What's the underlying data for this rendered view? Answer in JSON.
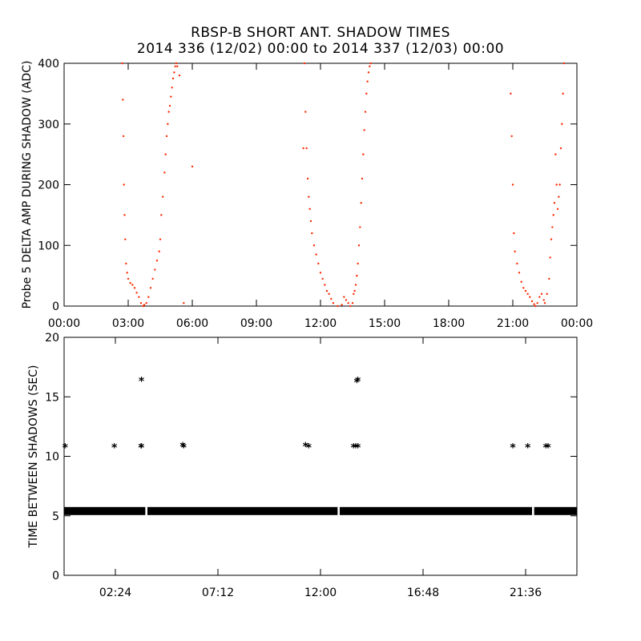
{
  "titles": {
    "line1": "RBSP-B SHORT ANT. SHADOW TIMES",
    "line2": "2014 336 (12/02) 00:00 to 2014 337 (12/03) 00:00"
  },
  "colors": {
    "shadow_points": "#ff2a00",
    "between_points": "#000000",
    "axes": "#000000"
  },
  "chart_data": [
    {
      "type": "scatter",
      "ylabel": "Probe 5 DELTA AMP DURING SHADOW (ADC)",
      "xlim": [
        0,
        24
      ],
      "ylim": [
        0,
        400
      ],
      "x_unit": "hours",
      "xticks": [
        0,
        3,
        6,
        9,
        12,
        15,
        18,
        21,
        24
      ],
      "xtick_labels": [
        "00:00",
        "03:00",
        "06:00",
        "09:00",
        "12:00",
        "15:00",
        "18:00",
        "21:00",
        "00:00"
      ],
      "yticks": [
        0,
        100,
        200,
        300,
        400
      ],
      "ytick_labels": [
        "0",
        "100",
        "200",
        "300",
        "400"
      ],
      "marker": "dot",
      "series": [
        {
          "x": [
            2.72,
            2.75,
            2.78,
            2.8,
            2.83,
            2.86,
            2.9,
            2.95,
            3.0,
            3.1,
            3.2,
            3.3,
            3.4,
            3.5,
            3.6,
            3.7,
            3.75,
            3.85,
            3.95,
            4.05,
            4.15,
            4.25,
            4.35,
            4.45,
            4.5,
            4.55,
            4.62,
            4.7,
            4.75,
            4.8,
            4.85,
            4.9,
            4.95,
            5.0,
            5.05,
            5.1,
            5.15,
            5.2,
            5.25,
            5.3,
            5.4,
            5.6,
            6.0
          ],
          "y": [
            400,
            340,
            280,
            200,
            150,
            110,
            70,
            55,
            45,
            38,
            35,
            30,
            22,
            15,
            5,
            0,
            2,
            5,
            15,
            30,
            45,
            60,
            75,
            90,
            110,
            150,
            180,
            220,
            250,
            280,
            300,
            320,
            330,
            345,
            360,
            375,
            385,
            395,
            400,
            395,
            380,
            5,
            230
          ]
        },
        {
          "x": [
            11.2,
            11.25,
            11.3,
            11.35,
            11.4,
            11.45,
            11.5,
            11.55,
            11.6,
            11.7,
            11.8,
            11.9,
            12.0,
            12.1,
            12.2,
            12.3,
            12.4,
            12.5,
            12.6,
            12.8,
            13.0,
            13.1,
            13.2,
            13.3,
            13.4,
            13.5,
            13.55,
            13.6,
            13.65,
            13.7,
            13.75,
            13.8,
            13.85,
            13.9,
            13.95,
            14.0,
            14.05,
            14.1,
            14.15,
            14.2,
            14.25,
            14.3,
            14.35
          ],
          "y": [
            260,
            400,
            320,
            260,
            210,
            180,
            160,
            140,
            120,
            100,
            85,
            70,
            55,
            45,
            35,
            25,
            20,
            12,
            5,
            0,
            2,
            15,
            10,
            5,
            0,
            5,
            20,
            25,
            35,
            50,
            70,
            100,
            130,
            170,
            210,
            250,
            290,
            320,
            350,
            370,
            385,
            395,
            400
          ]
        },
        {
          "x": [
            20.9,
            20.95,
            21.0,
            21.05,
            21.1,
            21.2,
            21.3,
            21.4,
            21.5,
            21.6,
            21.7,
            21.8,
            21.9,
            22.0,
            22.05,
            22.15,
            22.25,
            22.35,
            22.45,
            22.5,
            22.6,
            22.7,
            22.75,
            22.8,
            22.85,
            22.9,
            22.95,
            23.0,
            23.05,
            23.1,
            23.15,
            23.2,
            23.25,
            23.3,
            23.35,
            23.4
          ],
          "y": [
            350,
            280,
            200,
            120,
            90,
            70,
            55,
            40,
            30,
            25,
            20,
            15,
            8,
            3,
            0,
            5,
            15,
            20,
            10,
            5,
            20,
            45,
            80,
            110,
            130,
            150,
            170,
            250,
            200,
            160,
            180,
            200,
            260,
            300,
            350,
            400
          ]
        }
      ]
    },
    {
      "type": "scatter",
      "ylabel": "TIME BETWEEN SHADOWS (SEC)",
      "xlim": [
        0,
        24
      ],
      "ylim": [
        0,
        20
      ],
      "x_unit": "hours",
      "xticks": [
        2.4,
        7.2,
        12.0,
        16.8,
        21.6
      ],
      "xtick_labels": [
        "02:24",
        "07:12",
        "12:00",
        "16:48",
        "21:36"
      ],
      "yticks": [
        0,
        5,
        10,
        15,
        20
      ],
      "ytick_labels": [
        "0",
        "5",
        "10",
        "15",
        "20"
      ],
      "marker": "asterisk",
      "baseline": {
        "y": 5.4,
        "segments": [
          [
            0.0,
            3.8
          ],
          [
            3.9,
            12.8
          ],
          [
            12.9,
            21.9
          ],
          [
            22.0,
            24.0
          ]
        ]
      },
      "series": [
        {
          "x": [
            0.05,
            2.35,
            3.6,
            3.62,
            5.55,
            5.6,
            11.3,
            11.45,
            13.55,
            13.65,
            13.75,
            21.0,
            21.7,
            22.55,
            22.65,
            3.62,
            13.7,
            13.75
          ],
          "y": [
            10.8,
            10.8,
            10.8,
            10.8,
            10.9,
            10.8,
            10.9,
            10.8,
            10.8,
            10.8,
            10.8,
            10.8,
            10.8,
            10.8,
            10.8,
            16.4,
            16.3,
            16.4
          ]
        }
      ]
    }
  ]
}
